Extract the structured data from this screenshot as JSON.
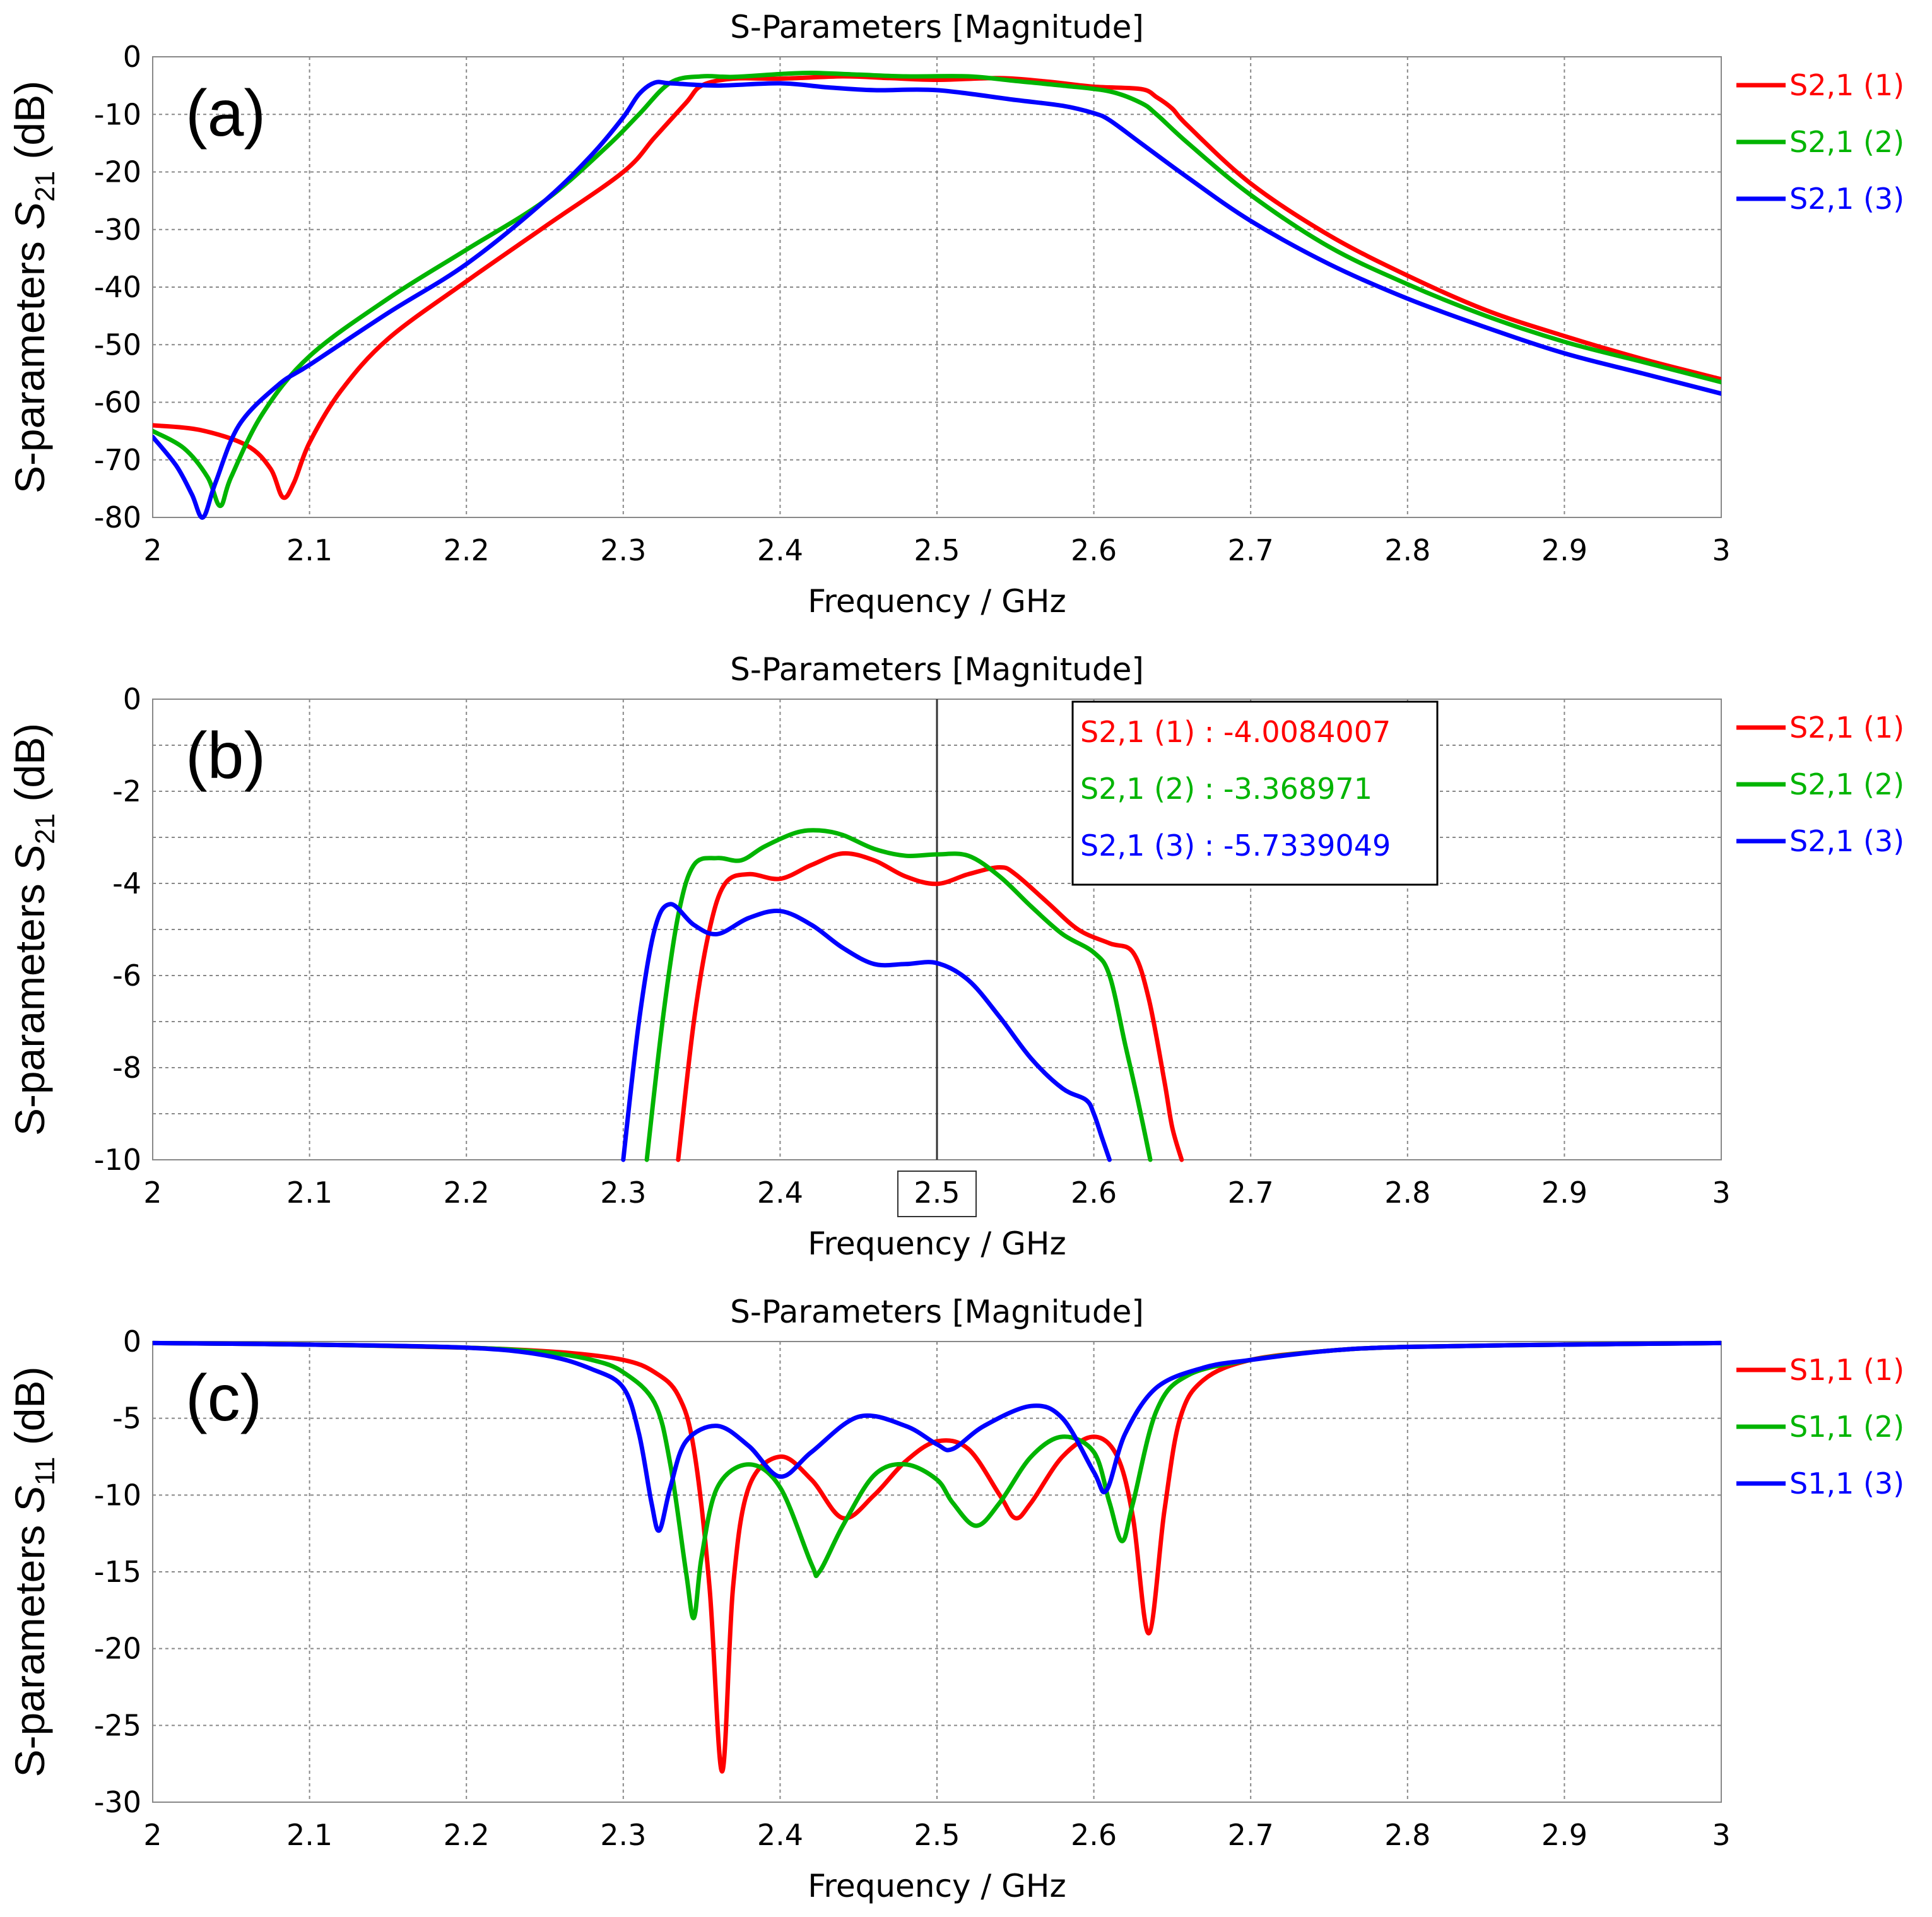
{
  "colors": {
    "s1": "#ff0000",
    "s2": "#00b400",
    "s3": "#0000ff"
  },
  "chart_data": [
    {
      "type": "line",
      "panel_label": "(a)",
      "title": "S-Parameters [Magnitude]",
      "xlabel": "Frequency / GHz",
      "ylabel_main": "S-parameters ",
      "ylabel_var": "S",
      "ylabel_sub": "21",
      "ylabel_unit": " (dB)",
      "xlim": [
        2,
        3
      ],
      "ylim": [
        -80,
        0
      ],
      "xticks": [
        2,
        2.1,
        2.2,
        2.3,
        2.4,
        2.5,
        2.6,
        2.7,
        2.8,
        2.9,
        3
      ],
      "xtick_labels": [
        "2",
        "2.1",
        "2.2",
        "2.3",
        "2.4",
        "2.5",
        "2.6",
        "2.7",
        "2.8",
        "2.9",
        "3"
      ],
      "yticks": [
        0,
        -10,
        -20,
        -30,
        -40,
        -50,
        -60,
        -70,
        -80
      ],
      "ytick_labels": [
        "0",
        "-10",
        "-20",
        "-30",
        "-40",
        "-50",
        "-60",
        "-70",
        "-80"
      ],
      "legend_position": "right",
      "series": [
        {
          "name": "S2,1 (1)",
          "color_key": "s1",
          "x": [
            2,
            2.03,
            2.06,
            2.075,
            2.083,
            2.09,
            2.1,
            2.12,
            2.15,
            2.2,
            2.25,
            2.3,
            2.32,
            2.34,
            2.35,
            2.37,
            2.4,
            2.44,
            2.47,
            2.5,
            2.54,
            2.57,
            2.6,
            2.63,
            2.64,
            2.65,
            2.66,
            2.7,
            2.75,
            2.8,
            2.85,
            2.9,
            2.95,
            3
          ],
          "y": [
            -64,
            -64.8,
            -67.5,
            -71.5,
            -76.5,
            -74,
            -67,
            -58,
            -49,
            -39,
            -29.5,
            -20,
            -14,
            -8,
            -5,
            -3.8,
            -3.8,
            -3.4,
            -3.7,
            -4,
            -3.7,
            -4.3,
            -5.2,
            -5.6,
            -7,
            -9,
            -12,
            -22,
            -31,
            -38,
            -44,
            -48.5,
            -52.5,
            -56
          ]
        },
        {
          "name": "S2,1 (2)",
          "color_key": "s2",
          "x": [
            2,
            2.02,
            2.035,
            2.043,
            2.05,
            2.07,
            2.1,
            2.15,
            2.2,
            2.25,
            2.29,
            2.31,
            2.33,
            2.35,
            2.37,
            2.4,
            2.42,
            2.45,
            2.48,
            2.52,
            2.55,
            2.58,
            2.61,
            2.63,
            2.64,
            2.66,
            2.7,
            2.75,
            2.8,
            2.85,
            2.9,
            2.95,
            3
          ],
          "y": [
            -65,
            -68,
            -73,
            -78,
            -73,
            -62,
            -52,
            -42,
            -33.5,
            -25,
            -15.5,
            -10,
            -4.5,
            -3.4,
            -3.5,
            -3,
            -2.8,
            -3.1,
            -3.4,
            -3.4,
            -4.2,
            -5,
            -6,
            -8,
            -10,
            -15,
            -24,
            -33,
            -39.5,
            -45,
            -49.5,
            -53,
            -56.5
          ]
        },
        {
          "name": "S2,1 (3)",
          "color_key": "s3",
          "x": [
            2,
            2.015,
            2.025,
            2.032,
            2.04,
            2.055,
            2.08,
            2.1,
            2.15,
            2.2,
            2.25,
            2.28,
            2.3,
            2.31,
            2.32,
            2.33,
            2.36,
            2.4,
            2.43,
            2.46,
            2.5,
            2.55,
            2.58,
            2.6,
            2.61,
            2.63,
            2.66,
            2.7,
            2.75,
            2.8,
            2.85,
            2.9,
            2.95,
            3
          ],
          "y": [
            -66,
            -71,
            -76,
            -80,
            -74,
            -64,
            -57,
            -53.5,
            -44.5,
            -36,
            -25,
            -17,
            -10.5,
            -6.5,
            -4.5,
            -4.6,
            -5,
            -4.6,
            -5.3,
            -5.8,
            -5.8,
            -7.5,
            -8.5,
            -9.8,
            -11,
            -15,
            -21,
            -28.5,
            -36,
            -42,
            -47,
            -51.5,
            -55,
            -58.5
          ]
        }
      ]
    },
    {
      "type": "line",
      "panel_label": "(b)",
      "title": "S-Parameters [Magnitude]",
      "xlabel": "Frequency / GHz",
      "ylabel_main": "S-parameters ",
      "ylabel_var": "S",
      "ylabel_sub": "21",
      "ylabel_unit": " (dB)",
      "xlim": [
        2,
        3
      ],
      "ylim": [
        -10,
        0
      ],
      "xticks": [
        2,
        2.1,
        2.2,
        2.3,
        2.4,
        2.5,
        2.6,
        2.7,
        2.8,
        2.9,
        3
      ],
      "xtick_labels": [
        "2",
        "2.1",
        "2.2",
        "2.3",
        "2.4",
        "2.5",
        "2.6",
        "2.7",
        "2.8",
        "2.9",
        "3"
      ],
      "yticks": [
        0,
        -2,
        -4,
        -6,
        -8,
        -10
      ],
      "ytick_labels": [
        "0",
        "-2",
        "-4",
        "-6",
        "-8",
        "-10"
      ],
      "minor_y_grid": [
        -1,
        -3,
        -5,
        -7,
        -9
      ],
      "marker_x": 2.5,
      "marker_label": "2.5",
      "readouts": [
        {
          "text": "S2,1 (1) : -4.0084007",
          "color_key": "s1"
        },
        {
          "text": "S2,1 (2) : -3.368971",
          "color_key": "s2"
        },
        {
          "text": "S2,1 (3) : -5.7339049",
          "color_key": "s3"
        }
      ],
      "legend_position": "right",
      "series": [
        {
          "name": "S2,1 (1)",
          "color_key": "s1",
          "x": [
            2.335,
            2.345,
            2.355,
            2.365,
            2.38,
            2.4,
            2.42,
            2.44,
            2.46,
            2.48,
            2.5,
            2.52,
            2.54,
            2.55,
            2.57,
            2.59,
            2.61,
            2.625,
            2.635,
            2.645,
            2.65,
            2.656
          ],
          "y": [
            -10,
            -7,
            -5,
            -4,
            -3.8,
            -3.9,
            -3.6,
            -3.35,
            -3.5,
            -3.85,
            -4.01,
            -3.8,
            -3.65,
            -3.8,
            -4.4,
            -5,
            -5.3,
            -5.5,
            -6.5,
            -8.3,
            -9.3,
            -10
          ]
        },
        {
          "name": "S2,1 (2)",
          "color_key": "s2",
          "x": [
            2.315,
            2.325,
            2.335,
            2.345,
            2.36,
            2.375,
            2.39,
            2.41,
            2.425,
            2.44,
            2.46,
            2.48,
            2.5,
            2.52,
            2.54,
            2.56,
            2.58,
            2.6,
            2.61,
            2.62,
            2.628,
            2.636
          ],
          "y": [
            -10,
            -7,
            -4.7,
            -3.6,
            -3.45,
            -3.5,
            -3.2,
            -2.9,
            -2.85,
            -2.95,
            -3.25,
            -3.4,
            -3.37,
            -3.4,
            -3.85,
            -4.5,
            -5.1,
            -5.5,
            -6,
            -7.5,
            -8.7,
            -10
          ]
        },
        {
          "name": "S2,1 (3)",
          "color_key": "s3",
          "x": [
            2.3,
            2.31,
            2.32,
            2.33,
            2.345,
            2.36,
            2.38,
            2.4,
            2.42,
            2.44,
            2.46,
            2.48,
            2.5,
            2.52,
            2.54,
            2.56,
            2.58,
            2.595,
            2.6,
            2.605,
            2.61
          ],
          "y": [
            -10,
            -7,
            -5,
            -4.45,
            -4.9,
            -5.1,
            -4.75,
            -4.6,
            -4.9,
            -5.4,
            -5.75,
            -5.75,
            -5.73,
            -6.1,
            -6.9,
            -7.8,
            -8.45,
            -8.7,
            -9,
            -9.5,
            -10
          ]
        }
      ]
    },
    {
      "type": "line",
      "panel_label": "(c)",
      "title": "S-Parameters [Magnitude]",
      "xlabel": "Frequency / GHz",
      "ylabel_main": "S-parameters ",
      "ylabel_var": "S",
      "ylabel_sub": "11",
      "ylabel_unit": " (dB)",
      "xlim": [
        2,
        3
      ],
      "ylim": [
        -30,
        0
      ],
      "xticks": [
        2,
        2.1,
        2.2,
        2.3,
        2.4,
        2.5,
        2.6,
        2.7,
        2.8,
        2.9,
        3
      ],
      "xtick_labels": [
        "2",
        "2.1",
        "2.2",
        "2.3",
        "2.4",
        "2.5",
        "2.6",
        "2.7",
        "2.8",
        "2.9",
        "3"
      ],
      "yticks": [
        0,
        -5,
        -10,
        -15,
        -20,
        -25,
        -30
      ],
      "ytick_labels": [
        "0",
        "-5",
        "-10",
        "-15",
        "-20",
        "-25",
        "-30"
      ],
      "legend_position": "right",
      "series": [
        {
          "name": "S1,1 (1)",
          "color_key": "s1",
          "x": [
            2,
            2.1,
            2.2,
            2.26,
            2.3,
            2.32,
            2.335,
            2.345,
            2.355,
            2.363,
            2.37,
            2.38,
            2.4,
            2.42,
            2.44,
            2.46,
            2.48,
            2.5,
            2.52,
            2.54,
            2.55,
            2.56,
            2.58,
            2.6,
            2.615,
            2.625,
            2.635,
            2.645,
            2.655,
            2.67,
            2.7,
            2.75,
            2.8,
            2.9,
            3
          ],
          "y": [
            -0.1,
            -0.2,
            -0.4,
            -0.7,
            -1.2,
            -2,
            -3.5,
            -7,
            -16,
            -28,
            -16,
            -9.5,
            -7.5,
            -9,
            -11.5,
            -10,
            -7.8,
            -6.5,
            -7,
            -10,
            -11.5,
            -10.5,
            -7.5,
            -6.2,
            -7.5,
            -11.5,
            -19,
            -11,
            -5,
            -2.5,
            -1.2,
            -0.6,
            -0.35,
            -0.2,
            -0.1
          ]
        },
        {
          "name": "S1,1 (2)",
          "color_key": "s2",
          "x": [
            2,
            2.1,
            2.2,
            2.25,
            2.28,
            2.3,
            2.32,
            2.33,
            2.34,
            2.345,
            2.35,
            2.36,
            2.38,
            2.4,
            2.42,
            2.425,
            2.44,
            2.46,
            2.48,
            2.5,
            2.51,
            2.525,
            2.54,
            2.56,
            2.58,
            2.6,
            2.61,
            2.618,
            2.625,
            2.64,
            2.66,
            2.7,
            2.75,
            2.8,
            2.9,
            3
          ],
          "y": [
            -0.1,
            -0.2,
            -0.4,
            -0.7,
            -1.2,
            -2,
            -4,
            -8,
            -15,
            -18,
            -14,
            -9.5,
            -8,
            -9.5,
            -14.5,
            -15,
            -12,
            -8.7,
            -8,
            -9,
            -10.5,
            -12,
            -10.5,
            -7.5,
            -6.2,
            -7.2,
            -10.5,
            -13,
            -10.5,
            -4.5,
            -2.2,
            -1.2,
            -0.6,
            -0.35,
            -0.2,
            -0.1
          ]
        },
        {
          "name": "S1,1 (3)",
          "color_key": "s3",
          "x": [
            2,
            2.1,
            2.2,
            2.25,
            2.28,
            2.3,
            2.31,
            2.318,
            2.323,
            2.33,
            2.34,
            2.36,
            2.38,
            2.4,
            2.42,
            2.45,
            2.48,
            2.5,
            2.51,
            2.53,
            2.56,
            2.58,
            2.6,
            2.608,
            2.62,
            2.64,
            2.67,
            2.7,
            2.75,
            2.8,
            2.9,
            3
          ],
          "y": [
            -0.1,
            -0.2,
            -0.4,
            -0.9,
            -1.8,
            -3,
            -6,
            -10.5,
            -12.3,
            -9.5,
            -6.5,
            -5.5,
            -6.8,
            -8.8,
            -7.2,
            -4.9,
            -5.5,
            -6.7,
            -7,
            -5.5,
            -4.2,
            -5,
            -8.5,
            -9.7,
            -6,
            -3,
            -1.7,
            -1.2,
            -0.6,
            -0.35,
            -0.2,
            -0.1
          ]
        }
      ]
    }
  ]
}
